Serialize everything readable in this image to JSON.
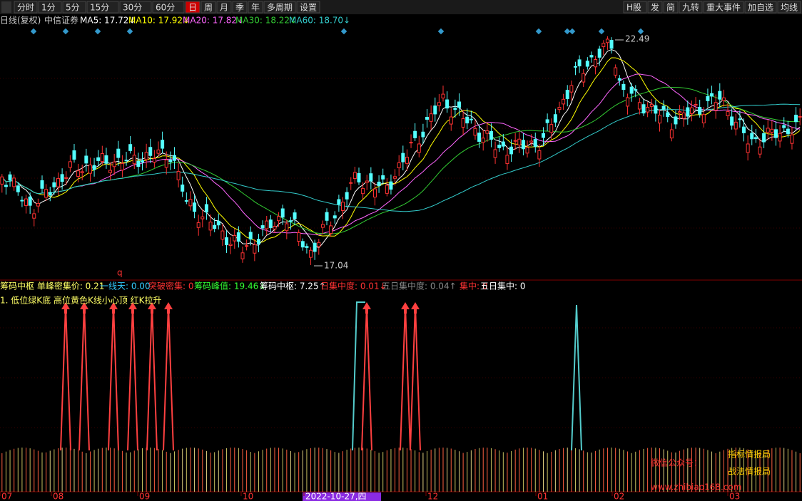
{
  "toolbar": {
    "left": [
      "分时",
      "1分",
      "5分",
      "15分",
      "30分",
      "60分",
      "日",
      "周",
      "月",
      "季",
      "年",
      "多周期",
      "设置"
    ],
    "right": [
      "H股",
      "发",
      "简",
      "九转",
      "重大事件",
      "加自选",
      "均线"
    ]
  },
  "info": {
    "period": "日线(复权)",
    "name": "中信证券",
    "ma": [
      "MA5: 17.72↓",
      "MA10: 17.92↓",
      "MA20: 17.82↓",
      "MA30: 18.22↓",
      "MA60: 18.70↓"
    ]
  },
  "annotations": {
    "high": "22.49",
    "low": "17.04",
    "marker": "q"
  },
  "indicator": {
    "items": [
      "筹码中枢 单峰密集价: 0.21",
      "一线天: 0.00",
      "突破密集: 0",
      "筹码峰值: 19.46↓",
      "筹码中枢: 7.25↑",
      "日集中度: 0.01↓",
      "五日集中度: 0.04↑",
      "集中: 0",
      "五日集中: 0"
    ],
    "note": "1. 低位绿K底 高位黄色K线小心顶 红K拉升"
  },
  "watermark": {
    "label": "微信公众号：",
    "names": [
      "指标情报局",
      "战法情报局"
    ],
    "url": "www.zhibiao168.com"
  },
  "xaxis": [
    "07",
    "08",
    "09",
    "10",
    "2022-10-27,四",
    "12",
    "01",
    "02",
    "03"
  ]
}
